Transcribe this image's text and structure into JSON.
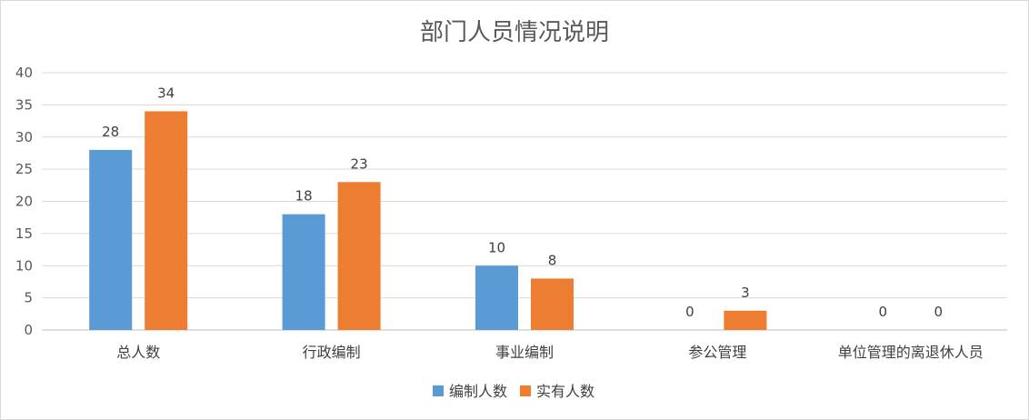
{
  "chart_data": {
    "type": "bar",
    "title": "部门人员情况说明",
    "categories": [
      "总人数",
      "行政编制",
      "事业编制",
      "参公管理",
      "单位管理的离退休人员"
    ],
    "series": [
      {
        "name": "编制人数",
        "color": "#5b9bd5",
        "values": [
          28,
          18,
          10,
          0,
          0
        ]
      },
      {
        "name": "实有人数",
        "color": "#ed7d31",
        "values": [
          34,
          23,
          8,
          3,
          0
        ]
      }
    ],
    "ylim": [
      0,
      40
    ],
    "yticks": [
      0,
      5,
      10,
      15,
      20,
      25,
      30,
      35,
      40
    ],
    "grid": true,
    "legend_position": "bottom"
  }
}
